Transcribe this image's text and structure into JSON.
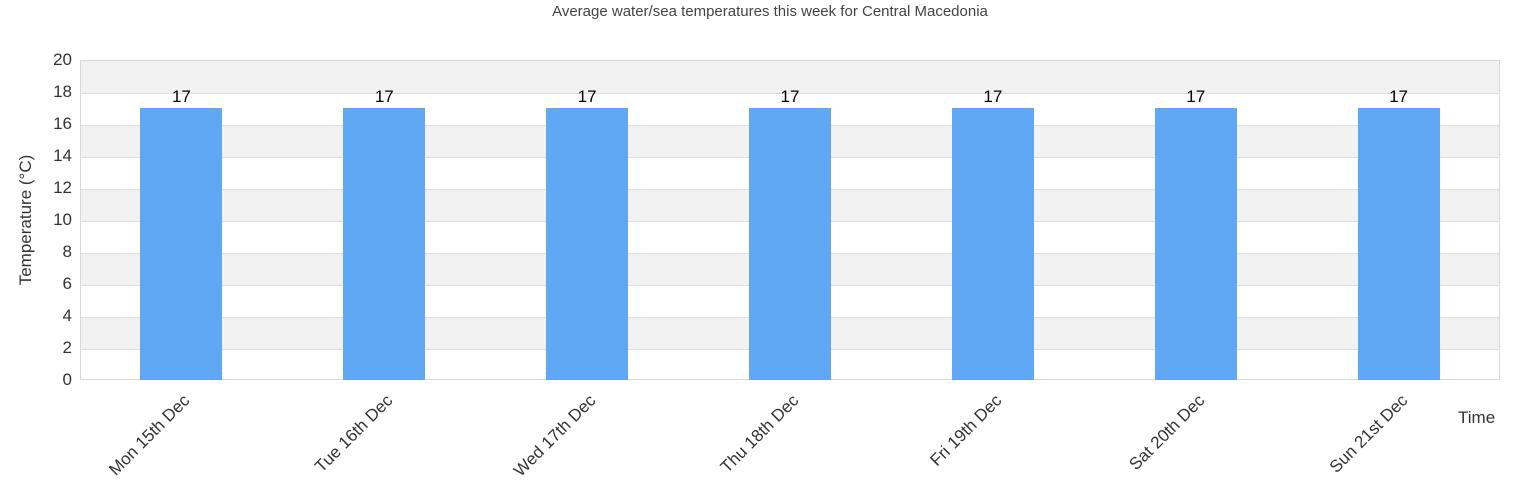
{
  "chart_data": {
    "type": "bar",
    "title": "Average water/sea temperatures this week for Central Macedonia",
    "xlabel": "Time",
    "ylabel": "Temperature (°C)",
    "categories": [
      "Mon 15th Dec",
      "Tue 16th Dec",
      "Wed 17th Dec",
      "Thu 18th Dec",
      "Fri 19th Dec",
      "Sat 20th Dec",
      "Sun 21st Dec"
    ],
    "values": [
      17,
      17,
      17,
      17,
      17,
      17,
      17
    ],
    "data_labels": [
      "17",
      "17",
      "17",
      "17",
      "17",
      "17",
      "17"
    ],
    "ylim": [
      0,
      20
    ],
    "yticks": [
      0,
      2,
      4,
      6,
      8,
      10,
      12,
      14,
      16,
      18,
      20
    ],
    "grid": true,
    "legend": null
  },
  "colors": {
    "bar": "#60a7f4",
    "band": "#f2f2f2",
    "grid": "#dddddd"
  }
}
